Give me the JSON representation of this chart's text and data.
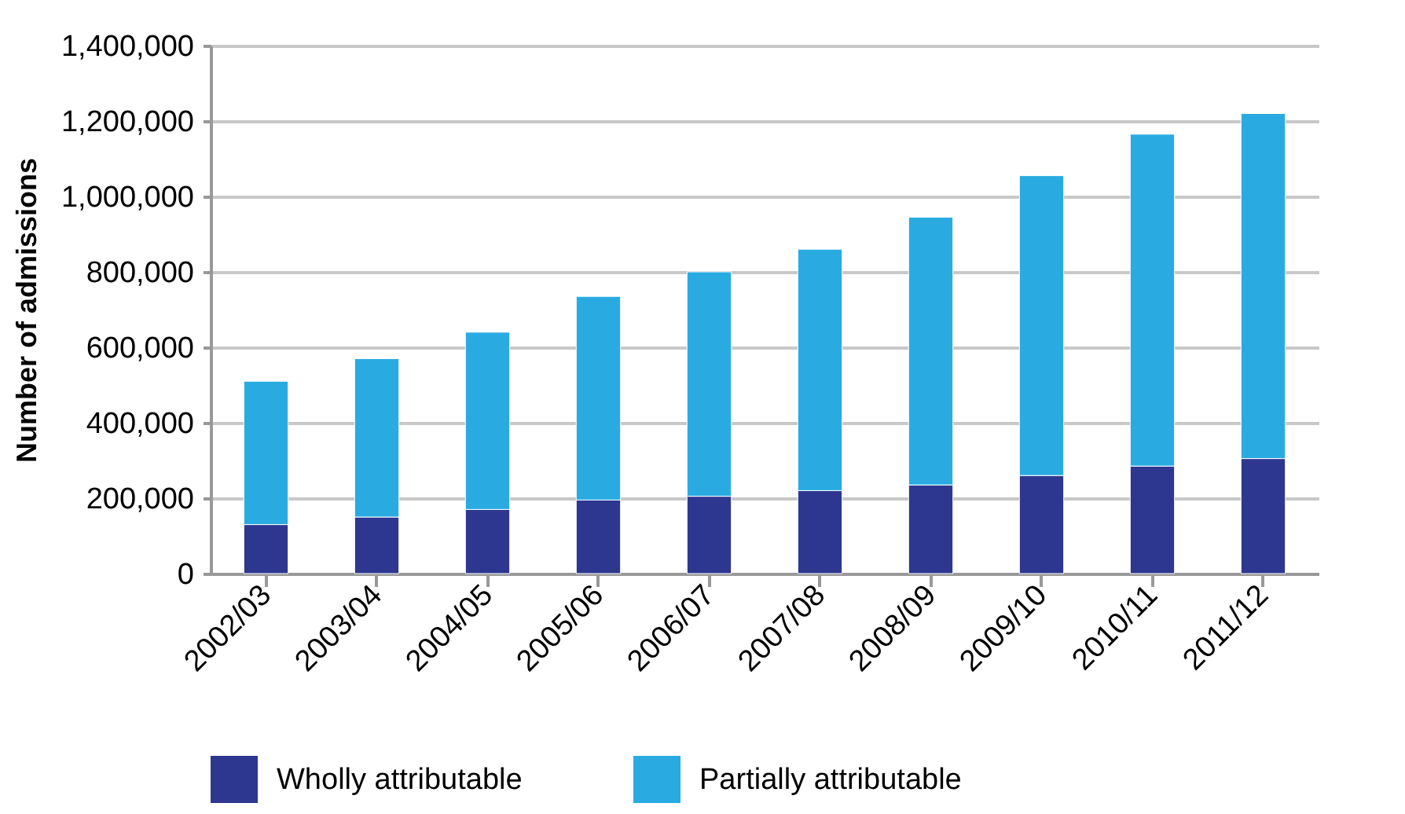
{
  "chart_data": {
    "type": "bar",
    "stacked": true,
    "ylabel": "Number of admissions",
    "categories": [
      "2002/03",
      "2003/04",
      "2004/05",
      "2005/06",
      "2006/07",
      "2007/08",
      "2008/09",
      "2009/10",
      "2010/11",
      "2011/12"
    ],
    "series": [
      {
        "name": "Wholly attributable",
        "color": "#2e3790",
        "values": [
          130000,
          150000,
          170000,
          195000,
          205000,
          220000,
          235000,
          260000,
          285000,
          305000
        ]
      },
      {
        "name": "Partially attributable",
        "color": "#29abe2",
        "values": [
          380000,
          420000,
          470000,
          540000,
          595000,
          640000,
          710000,
          795000,
          880000,
          915000
        ]
      }
    ],
    "ylim": [
      0,
      1400000
    ],
    "yticks": [
      0,
      {
        "value": 200000,
        "label": "200,000"
      },
      {
        "value": 400000,
        "label": "400,000"
      },
      {
        "value": 600000,
        "label": "600,000"
      },
      {
        "value": 800000,
        "label": "800,000"
      },
      {
        "value": 1000000,
        "label": "1,000,000"
      },
      {
        "value": 1200000,
        "label": "1,200,000"
      },
      {
        "value": 1400000,
        "label": "1,400,000"
      }
    ],
    "grid": "y",
    "legend": "bottom"
  }
}
